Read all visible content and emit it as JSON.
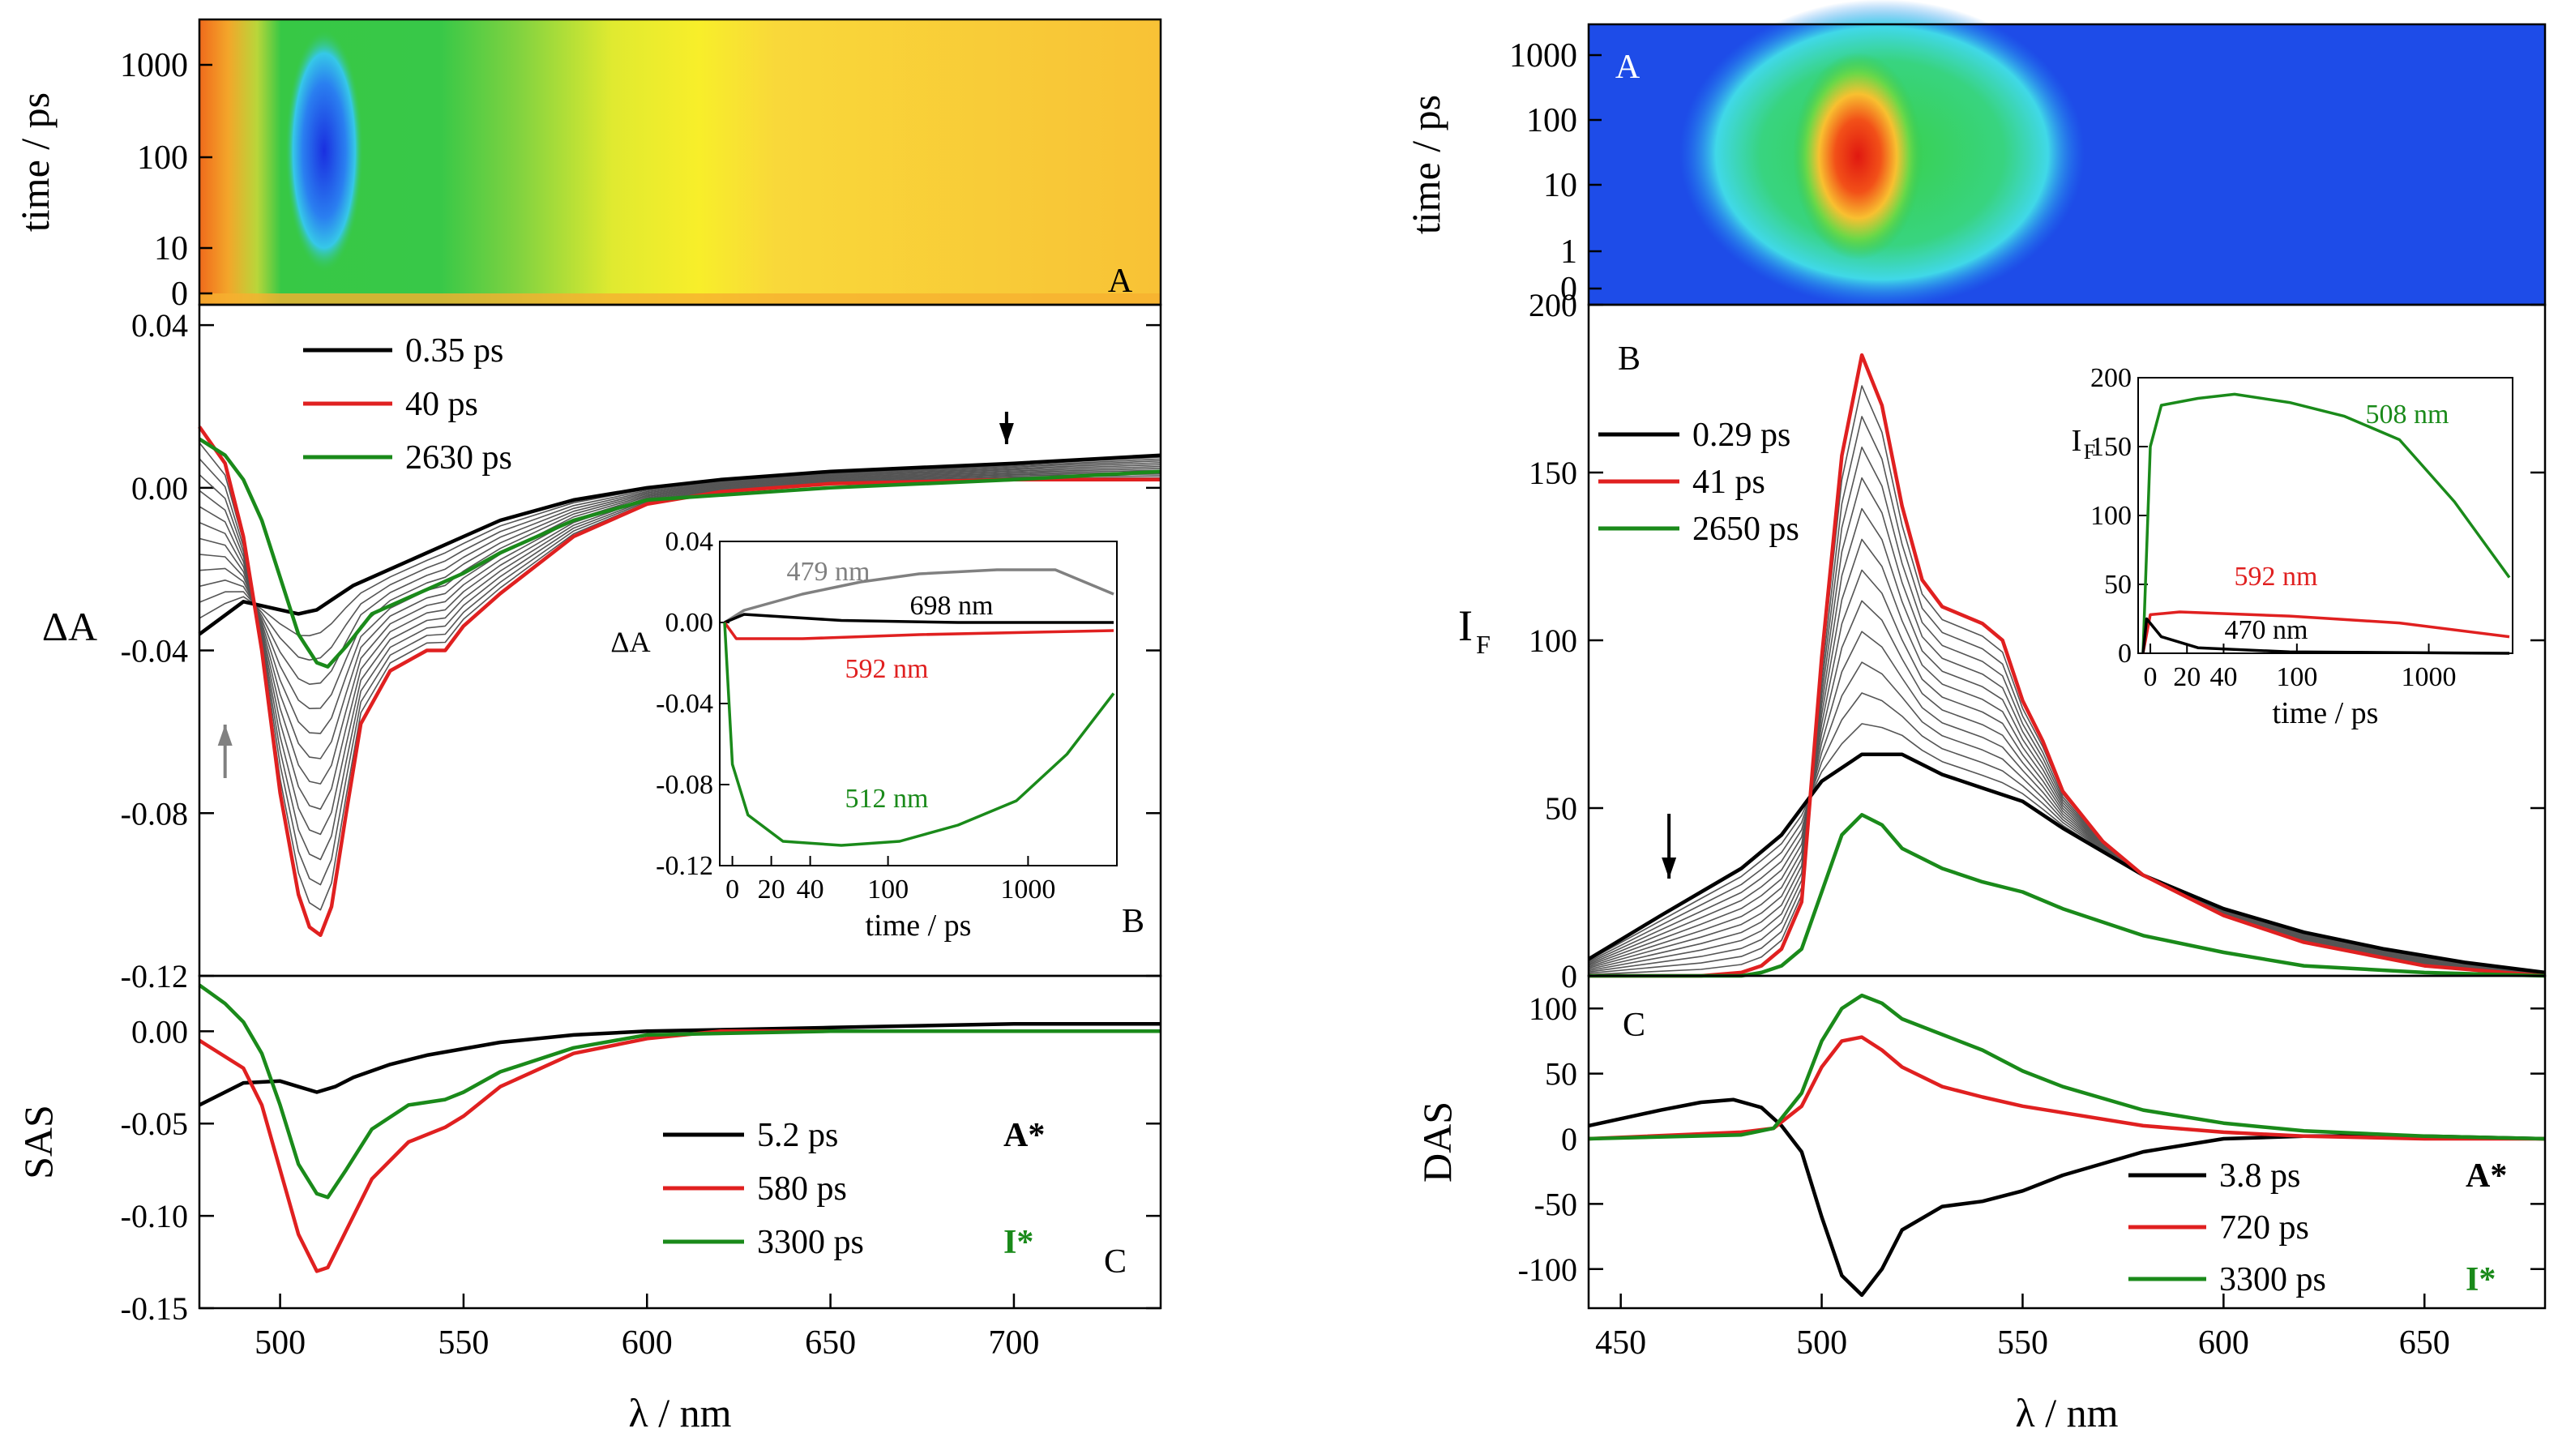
{
  "chart_data": [
    {
      "id": "left_A",
      "type": "heatmap",
      "panel_label": "A",
      "ylabel": "time / ps",
      "ytick_labels": [
        "0",
        "10",
        "100",
        "1000"
      ],
      "ytick_values": [
        0,
        10,
        100,
        1000
      ],
      "xlim": [
        478,
        740
      ],
      "ylim": [
        0,
        3000
      ],
      "colormap": "orange-yellow-green-blue (negative ΔA = blue)",
      "features": [
        {
          "name": "bleach core",
          "lambda_nm": [
            505,
            520
          ],
          "time_ps": [
            20,
            1000
          ],
          "color": "#1f3fe0"
        },
        {
          "name": "bleach band",
          "lambda_nm": [
            497,
            560
          ],
          "time_ps": [
            2,
            3000
          ],
          "color": "#2fc84a"
        },
        {
          "name": "red edge",
          "lambda_nm": [
            478,
            484
          ],
          "time_ps": [
            0,
            3000
          ],
          "color": "#f07a20"
        }
      ]
    },
    {
      "id": "left_B",
      "type": "line",
      "panel_label": "B",
      "ylabel": "ΔA",
      "xlim": [
        478,
        740
      ],
      "ylim": [
        -0.12,
        0.045
      ],
      "ytick_values": [
        -0.12,
        -0.08,
        -0.04,
        0.0,
        0.04
      ],
      "ytick_labels": [
        "-0.12",
        "-0.08",
        "-0.04",
        "0.00",
        "0.04"
      ],
      "legend": [
        "0.35 ps",
        "40 ps",
        "2630 ps"
      ],
      "series": [
        {
          "name": "0.35 ps",
          "color": "#000000",
          "x": [
            478,
            490,
            500,
            505,
            510,
            515,
            520,
            530,
            540,
            550,
            560,
            580,
            600,
            620,
            650,
            700,
            740
          ],
          "y": [
            -0.036,
            -0.028,
            -0.03,
            -0.031,
            -0.03,
            -0.027,
            -0.024,
            -0.02,
            -0.016,
            -0.012,
            -0.008,
            -0.003,
            0.0,
            0.002,
            0.004,
            0.006,
            0.008
          ]
        },
        {
          "name": "40 ps",
          "color": "#e02020",
          "x": [
            478,
            485,
            490,
            495,
            500,
            505,
            508,
            511,
            514,
            518,
            522,
            530,
            540,
            545,
            550,
            560,
            580,
            600,
            620,
            650,
            700,
            740
          ],
          "y": [
            0.015,
            0.006,
            -0.012,
            -0.04,
            -0.075,
            -0.1,
            -0.108,
            -0.11,
            -0.103,
            -0.08,
            -0.058,
            -0.045,
            -0.04,
            -0.04,
            -0.034,
            -0.026,
            -0.012,
            -0.004,
            -0.001,
            0.001,
            0.002,
            0.002
          ]
        },
        {
          "name": "2630 ps",
          "color": "#1a8a1a",
          "x": [
            478,
            485,
            490,
            495,
            500,
            505,
            510,
            513,
            518,
            525,
            530,
            540,
            550,
            560,
            580,
            600,
            650,
            700,
            740
          ],
          "y": [
            0.012,
            0.008,
            0.002,
            -0.008,
            -0.022,
            -0.036,
            -0.043,
            -0.044,
            -0.039,
            -0.031,
            -0.029,
            -0.025,
            -0.021,
            -0.016,
            -0.008,
            -0.003,
            0.0,
            0.002,
            0.004
          ]
        }
      ],
      "annotations": [
        "down arrow at 698 nm (black)",
        "up arrow at 485 nm (gray)"
      ]
    },
    {
      "id": "left_B_inset",
      "type": "line",
      "xlabel": "time / ps",
      "ylabel": "ΔA",
      "ylim": [
        -0.12,
        0.04
      ],
      "ytick_labels": [
        "0.04",
        "0.00",
        "-0.04",
        "-0.08",
        "-0.12"
      ],
      "ytick_values": [
        0.04,
        0.0,
        -0.04,
        -0.08,
        -0.12
      ],
      "xtick_labels": [
        "0",
        "20",
        "40",
        "100",
        "1000"
      ],
      "series": [
        {
          "name": "479 nm",
          "color": "#808080",
          "pos": [
            0,
            0.05,
            0.2,
            0.35,
            0.5,
            0.7,
            0.85,
            1.0
          ],
          "y": [
            0.0,
            0.006,
            0.014,
            0.02,
            0.024,
            0.026,
            0.026,
            0.014
          ]
        },
        {
          "name": "698 nm",
          "color": "#000000",
          "pos": [
            0,
            0.05,
            0.3,
            0.6,
            1.0
          ],
          "y": [
            0.0,
            0.004,
            0.001,
            0.0,
            0.0
          ]
        },
        {
          "name": "592 nm",
          "color": "#e02020",
          "pos": [
            0,
            0.03,
            0.2,
            0.5,
            1.0
          ],
          "y": [
            0.0,
            -0.008,
            -0.008,
            -0.006,
            -0.004
          ]
        },
        {
          "name": "512 nm",
          "color": "#1a8a1a",
          "pos": [
            0,
            0.02,
            0.06,
            0.15,
            0.3,
            0.45,
            0.6,
            0.75,
            0.88,
            1.0
          ],
          "y": [
            0.0,
            -0.07,
            -0.095,
            -0.108,
            -0.11,
            -0.108,
            -0.1,
            -0.088,
            -0.065,
            -0.035
          ]
        }
      ]
    },
    {
      "id": "left_C",
      "type": "line",
      "panel_label": "C",
      "ylabel": "SAS",
      "xlabel": "λ / nm",
      "xlim": [
        478,
        740
      ],
      "ylim": [
        -0.15,
        0.03
      ],
      "ytick_values": [
        -0.15,
        -0.1,
        -0.05,
        0.0
      ],
      "ytick_labels": [
        "-0.15",
        "-0.10",
        "-0.05",
        "0.00"
      ],
      "xtick_values": [
        500,
        550,
        600,
        650,
        700
      ],
      "xtick_labels": [
        "500",
        "550",
        "600",
        "650",
        "700"
      ],
      "legend": [
        "5.2 ps",
        "580 ps",
        "3300 ps"
      ],
      "species_labels": [
        "A*",
        "",
        "I*"
      ],
      "series": [
        {
          "name": "5.2 ps",
          "color": "#000000",
          "x": [
            478,
            490,
            500,
            505,
            510,
            515,
            520,
            530,
            540,
            560,
            580,
            600,
            650,
            700,
            740
          ],
          "y": [
            -0.04,
            -0.028,
            -0.027,
            -0.03,
            -0.033,
            -0.03,
            -0.025,
            -0.018,
            -0.013,
            -0.006,
            -0.002,
            0.0,
            0.002,
            0.004,
            0.004
          ]
        },
        {
          "name": "580 ps",
          "color": "#e02020",
          "x": [
            478,
            490,
            495,
            500,
            505,
            510,
            513,
            518,
            525,
            535,
            545,
            550,
            560,
            580,
            600,
            620,
            650,
            700,
            740
          ],
          "y": [
            -0.005,
            -0.02,
            -0.04,
            -0.075,
            -0.11,
            -0.13,
            -0.128,
            -0.108,
            -0.08,
            -0.06,
            -0.052,
            -0.046,
            -0.03,
            -0.012,
            -0.004,
            0.0,
            0.0,
            0.0,
            0.0
          ]
        },
        {
          "name": "3300 ps",
          "color": "#1a8a1a",
          "x": [
            478,
            485,
            490,
            495,
            500,
            505,
            510,
            513,
            518,
            525,
            535,
            545,
            550,
            560,
            580,
            600,
            650,
            700,
            740
          ],
          "y": [
            0.025,
            0.015,
            0.005,
            -0.012,
            -0.04,
            -0.072,
            -0.088,
            -0.09,
            -0.075,
            -0.053,
            -0.04,
            -0.037,
            -0.033,
            -0.022,
            -0.009,
            -0.002,
            0.0,
            0.0,
            0.0
          ]
        }
      ]
    },
    {
      "id": "right_A",
      "type": "heatmap",
      "panel_label": "A",
      "ylabel": "time / ps",
      "ytick_labels": [
        "0",
        "1",
        "10",
        "100",
        "1000"
      ],
      "ytick_values": [
        0,
        1,
        10,
        100,
        1000
      ],
      "xlim": [
        442,
        680
      ],
      "ylim": [
        0,
        3000
      ],
      "colormap": "blue-cyan-green-yellow-red (emission intensity)",
      "features": [
        {
          "name": "emission max",
          "lambda_nm": [
            500,
            517
          ],
          "time_ps": [
            5,
            300
          ],
          "color": "#e03a10"
        },
        {
          "name": "emission band",
          "lambda_nm": [
            490,
            560
          ],
          "time_ps": [
            1,
            3000
          ],
          "color": "#2fc84a"
        }
      ]
    },
    {
      "id": "right_B",
      "type": "line",
      "panel_label": "B",
      "ylabel": "I",
      "ylabel_sub": "F",
      "xlim": [
        442,
        680
      ],
      "ylim": [
        0,
        200
      ],
      "ytick_values": [
        0,
        50,
        100,
        150,
        200
      ],
      "ytick_labels": [
        "0",
        "50",
        "100",
        "150",
        "200"
      ],
      "legend": [
        "0.29 ps",
        "41 ps",
        "2650 ps"
      ],
      "series": [
        {
          "name": "0.29 ps",
          "color": "#000000",
          "x": [
            442,
            460,
            470,
            480,
            490,
            500,
            510,
            520,
            530,
            540,
            550,
            560,
            580,
            600,
            620,
            640,
            660,
            680
          ],
          "y": [
            5,
            18,
            25,
            32,
            42,
            58,
            66,
            66,
            60,
            56,
            52,
            44,
            30,
            20,
            13,
            8,
            4,
            1
          ]
        },
        {
          "name": "41 ps",
          "color": "#e02020",
          "x": [
            442,
            470,
            480,
            485,
            490,
            495,
            500,
            505,
            510,
            515,
            520,
            525,
            530,
            540,
            545,
            550,
            555,
            560,
            570,
            580,
            600,
            620,
            650,
            680
          ],
          "y": [
            0,
            0,
            1,
            3,
            8,
            22,
            95,
            155,
            185,
            170,
            140,
            118,
            110,
            105,
            100,
            82,
            70,
            55,
            40,
            30,
            18,
            10,
            3,
            0
          ]
        },
        {
          "name": "2650 ps",
          "color": "#1a8a1a",
          "x": [
            442,
            480,
            485,
            490,
            495,
            500,
            505,
            510,
            515,
            520,
            530,
            540,
            550,
            560,
            580,
            600,
            620,
            650,
            680
          ],
          "y": [
            0,
            0,
            1,
            3,
            8,
            25,
            42,
            48,
            45,
            38,
            32,
            28,
            25,
            20,
            12,
            7,
            3,
            1,
            0
          ]
        }
      ],
      "annotations": [
        "down arrow at 462 nm (black)"
      ]
    },
    {
      "id": "right_B_inset",
      "type": "line",
      "xlabel": "time / ps",
      "ylabel": "I",
      "ylabel_sub": "F",
      "ylim": [
        0,
        200
      ],
      "ytick_labels": [
        "0",
        "50",
        "100",
        "150",
        "200"
      ],
      "ytick_values": [
        0,
        50,
        100,
        150,
        200
      ],
      "xtick_labels": [
        "0",
        "20",
        "40",
        "100",
        "1000"
      ],
      "series": [
        {
          "name": "508 nm",
          "color": "#1a8a1a",
          "pos": [
            0,
            0.02,
            0.05,
            0.15,
            0.25,
            0.4,
            0.55,
            0.7,
            0.85,
            1.0
          ],
          "y": [
            0,
            150,
            180,
            185,
            188,
            182,
            172,
            155,
            110,
            55
          ]
        },
        {
          "name": "592 nm",
          "color": "#e02020",
          "pos": [
            0,
            0.02,
            0.1,
            0.4,
            0.7,
            1.0
          ],
          "y": [
            0,
            28,
            30,
            27,
            22,
            12
          ]
        },
        {
          "name": "470 nm",
          "color": "#000000",
          "pos": [
            0,
            0.01,
            0.05,
            0.15,
            0.4,
            1.0
          ],
          "y": [
            0,
            25,
            12,
            4,
            1,
            0
          ]
        }
      ]
    },
    {
      "id": "right_C",
      "type": "line",
      "panel_label": "C",
      "ylabel": "DAS",
      "xlabel": "λ / nm",
      "xlim": [
        442,
        680
      ],
      "ylim": [
        -130,
        125
      ],
      "ytick_values": [
        -100,
        -50,
        0,
        50,
        100
      ],
      "ytick_labels": [
        "-100",
        "-50",
        "0",
        "50",
        "100"
      ],
      "xtick_values": [
        450,
        500,
        550,
        600,
        650
      ],
      "xtick_labels": [
        "450",
        "500",
        "550",
        "600",
        "650"
      ],
      "legend": [
        "3.8 ps",
        "720 ps",
        "3300 ps"
      ],
      "species_labels": [
        "A*",
        "",
        "I*"
      ],
      "series": [
        {
          "name": "3.8 ps",
          "color": "#000000",
          "x": [
            442,
            460,
            470,
            478,
            485,
            490,
            495,
            500,
            505,
            510,
            515,
            520,
            530,
            540,
            550,
            560,
            580,
            600,
            620,
            650,
            680
          ],
          "y": [
            10,
            22,
            28,
            30,
            24,
            10,
            -10,
            -60,
            -105,
            -120,
            -100,
            -70,
            -52,
            -48,
            -40,
            -28,
            -10,
            0,
            2,
            2,
            0
          ]
        },
        {
          "name": "720 ps",
          "color": "#e02020",
          "x": [
            442,
            480,
            488,
            495,
            500,
            505,
            510,
            515,
            520,
            530,
            540,
            550,
            560,
            580,
            600,
            620,
            650,
            680
          ],
          "y": [
            0,
            5,
            8,
            25,
            55,
            75,
            78,
            68,
            55,
            40,
            32,
            25,
            20,
            10,
            5,
            2,
            0,
            0
          ]
        },
        {
          "name": "3300 ps",
          "color": "#1a8a1a",
          "x": [
            442,
            480,
            488,
            495,
            500,
            505,
            510,
            515,
            520,
            530,
            540,
            550,
            560,
            580,
            600,
            620,
            650,
            680
          ],
          "y": [
            0,
            3,
            8,
            35,
            75,
            100,
            110,
            104,
            92,
            80,
            68,
            52,
            40,
            22,
            12,
            6,
            2,
            0
          ]
        }
      ]
    }
  ]
}
